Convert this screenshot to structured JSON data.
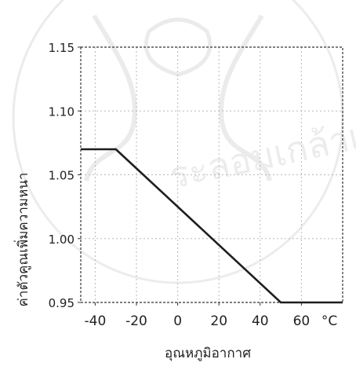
{
  "chart_data": {
    "type": "line",
    "title": "",
    "xlabel": "อุณหภูมิอากาศ",
    "ylabel": "ค่าตัวคูณเพิ่มความหนา",
    "x_unit_label": "°C",
    "xlim": [
      -47,
      80
    ],
    "ylim": [
      0.95,
      1.15
    ],
    "x_ticks": [
      -40,
      -20,
      0,
      20,
      40,
      60
    ],
    "x_tick_labels": [
      "-40",
      "-20",
      "0",
      "20",
      "40",
      "60"
    ],
    "y_ticks": [
      0.95,
      1.0,
      1.05,
      1.1,
      1.15
    ],
    "y_tick_labels": [
      "0.95",
      "1.00",
      "1.05",
      "1.10",
      "1.15"
    ],
    "grid": true,
    "series": [
      {
        "x": [
          -47,
          -30,
          50,
          80
        ],
        "y": [
          1.07,
          1.07,
          0.95,
          0.95
        ]
      }
    ]
  },
  "colors": {
    "line": "#1e1e1e",
    "grid": "#b8b8b8",
    "frame": "#333333",
    "watermark": "#d8d8d8"
  }
}
